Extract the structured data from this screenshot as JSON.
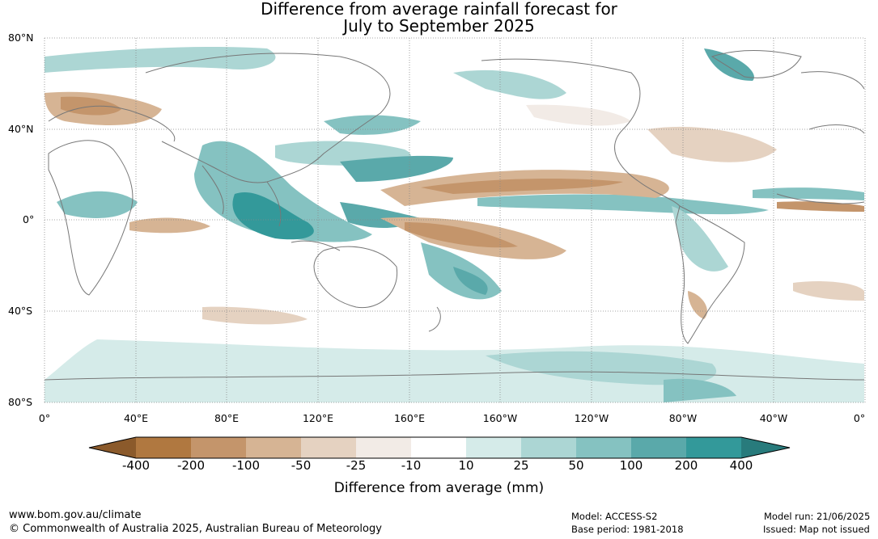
{
  "title": {
    "line1": "Difference from average rainfall forecast for",
    "line2": "July to September 2025"
  },
  "lat_labels": [
    "80°N",
    "40°N",
    "0°",
    "40°S",
    "80°S"
  ],
  "lon_labels": [
    "0°",
    "40°E",
    "80°E",
    "120°E",
    "160°E",
    "160°W",
    "120°W",
    "80°W",
    "40°W",
    "0°"
  ],
  "legend": {
    "title": "Difference from average (mm)",
    "tick_labels": [
      "-400",
      "-200",
      "-100",
      "-50",
      "-25",
      "-10",
      "10",
      "25",
      "50",
      "100",
      "200",
      "400"
    ],
    "bin_colors": [
      "#8b5a2b",
      "#b07840",
      "#c4956b",
      "#d6b494",
      "#e5d2c1",
      "#f2ebe6",
      "#ffffff",
      "#d5ebe9",
      "#acd6d4",
      "#85c2c1",
      "#5aa9aa",
      "#33999a",
      "#287b7c"
    ]
  },
  "footer": {
    "website": "www.bom.gov.au/climate",
    "copyright": "© Commonwealth of Australia 2025, Australian Bureau of Meteorology",
    "model": "Model: ACCESS-S2",
    "base_period": "Base period: 1981-2018",
    "model_run": "Model run: 21/06/2025",
    "issued": "Issued: Map not issued"
  }
}
